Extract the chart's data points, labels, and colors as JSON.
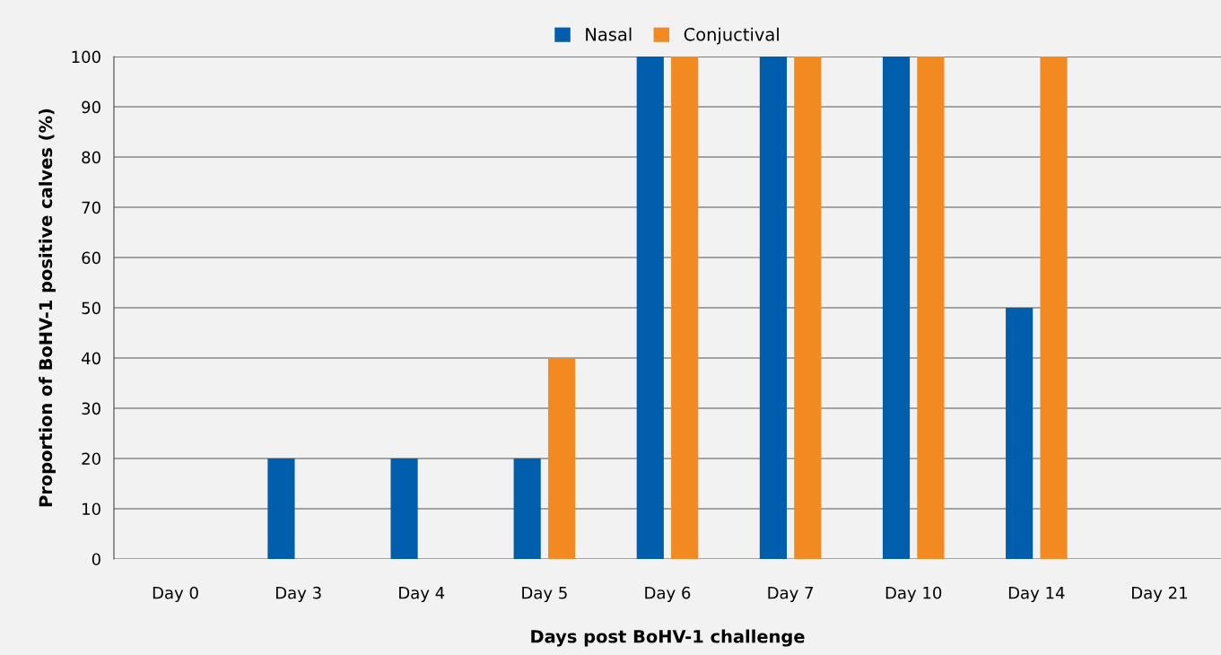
{
  "chart_data": {
    "type": "bar",
    "xlabel": "Days post BoHV-1 challenge",
    "ylabel": "Proportion of BoHV-1 positive calves (%)",
    "categories": [
      "Day 0",
      "Day 3",
      "Day 4",
      "Day 5",
      "Day 6",
      "Day 7",
      "Day 10",
      "Day 14",
      "Day 21"
    ],
    "series": [
      {
        "name": "Nasal",
        "color": "#005eac",
        "values": [
          0,
          20,
          20,
          20,
          100,
          100,
          100,
          50,
          0
        ]
      },
      {
        "name": "Conjuctival",
        "color": "#f28a21",
        "values": [
          0,
          0,
          0,
          40,
          100,
          100,
          100,
          100,
          0
        ]
      }
    ],
    "ylim": [
      0,
      100
    ],
    "yticks": [
      0,
      10,
      20,
      30,
      40,
      50,
      60,
      70,
      80,
      90,
      100
    ],
    "grid": "y",
    "legend": "top"
  }
}
